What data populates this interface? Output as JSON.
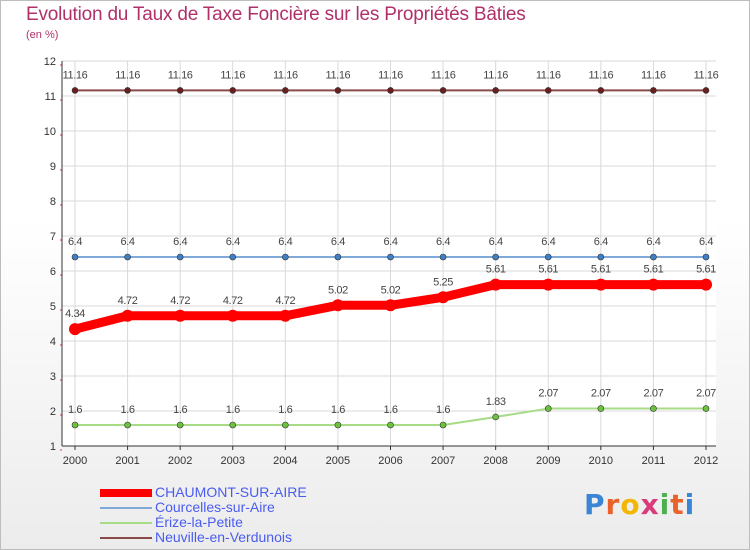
{
  "title": "Evolution du Taux de Taxe Foncière sur les Propriétés Bâties",
  "subtitle": "(en %)",
  "logo_text": "Proxiti",
  "colors": {
    "title": "#b0306a",
    "axis_text": "#333333",
    "legend_text": "#4a5cf0",
    "grid": "#d9d9d9"
  },
  "chart_data": {
    "type": "line",
    "title": "Evolution du Taux de Taxe Foncière sur les Propriétés Bâties",
    "ylabel": "(en %)",
    "xlabel": "",
    "x": [
      "2000",
      "2001",
      "2002",
      "2003",
      "2004",
      "2005",
      "2006",
      "2007",
      "2008",
      "2009",
      "2010",
      "2011",
      "2012"
    ],
    "ylim": [
      1,
      12
    ],
    "yticks": [
      1,
      2,
      3,
      4,
      5,
      6,
      7,
      8,
      9,
      10,
      11,
      12
    ],
    "grid": true,
    "legend_placement": "bottom-left",
    "series": [
      {
        "name": "CHAUMONT-SUR-AIRE",
        "color": "#ff0000",
        "marker_color": "#ff0000",
        "values": [
          4.34,
          4.72,
          4.72,
          4.72,
          4.72,
          5.02,
          5.02,
          5.25,
          5.61,
          5.61,
          5.61,
          5.61,
          5.61
        ],
        "labels": [
          "4.34",
          "4.72",
          "4.72",
          "4.72",
          "4.72",
          "5.02",
          "5.02",
          "5.25",
          "5.61",
          "5.61",
          "5.61",
          "5.61",
          "5.61"
        ]
      },
      {
        "name": "Courcelles-sur-Aire",
        "color": "#7fa9d8",
        "marker_color": "#3f7fc4",
        "values": [
          6.4,
          6.4,
          6.4,
          6.4,
          6.4,
          6.4,
          6.4,
          6.4,
          6.4,
          6.4,
          6.4,
          6.4,
          6.4
        ],
        "labels": [
          "6.4",
          "6.4",
          "6.4",
          "6.4",
          "6.4",
          "6.4",
          "6.4",
          "6.4",
          "6.4",
          "6.4",
          "6.4",
          "6.4",
          "6.4"
        ]
      },
      {
        "name": "Érize-la-Petite",
        "color": "#a8db86",
        "marker_color": "#6cc23c",
        "values": [
          1.6,
          1.6,
          1.6,
          1.6,
          1.6,
          1.6,
          1.6,
          1.6,
          1.83,
          2.07,
          2.07,
          2.07,
          2.07
        ],
        "labels": [
          "1.6",
          "1.6",
          "1.6",
          "1.6",
          "1.6",
          "1.6",
          "1.6",
          "1.6",
          "1.83",
          "2.07",
          "2.07",
          "2.07",
          "2.07"
        ]
      },
      {
        "name": "Neuville-en-Verdunois",
        "color": "#8a4a4a",
        "marker_color": "#6a1f1f",
        "values": [
          11.16,
          11.16,
          11.16,
          11.16,
          11.16,
          11.16,
          11.16,
          11.16,
          11.16,
          11.16,
          11.16,
          11.16,
          11.16
        ],
        "labels": [
          "11.16",
          "11.16",
          "11.16",
          "11.16",
          "11.16",
          "11.16",
          "11.16",
          "11.16",
          "11.16",
          "11.16",
          "11.16",
          "11.16",
          "11.16"
        ]
      }
    ]
  }
}
